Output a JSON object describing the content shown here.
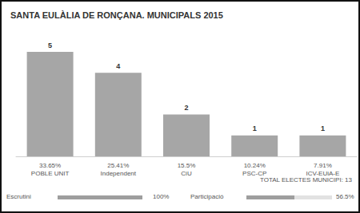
{
  "chart_data": {
    "type": "bar",
    "title": "SANTA EULÀLIA DE RONÇANA. MUNICIPALS 2015",
    "categories": [
      "33.65%\nPOBLE UNIT",
      "25.41%\nIndependent",
      "15.5%\nCiU",
      "10.24%\nPSC-CP",
      "7.91%\nICV-EUiA-E"
    ],
    "values": [
      5,
      4,
      2,
      1,
      1
    ],
    "color": "#a6a6a6",
    "ylim": [
      0,
      5
    ],
    "grid": false,
    "tick_labels": "x",
    "data_labels": true
  },
  "total": "TOTAL ELECTES MUNICIPI: 13",
  "progress": [
    {
      "label": "Escrutini",
      "value": 100,
      "value_label": "100%"
    },
    {
      "label": "Participació",
      "value": 56.5,
      "value_label": "56.5%"
    }
  ]
}
